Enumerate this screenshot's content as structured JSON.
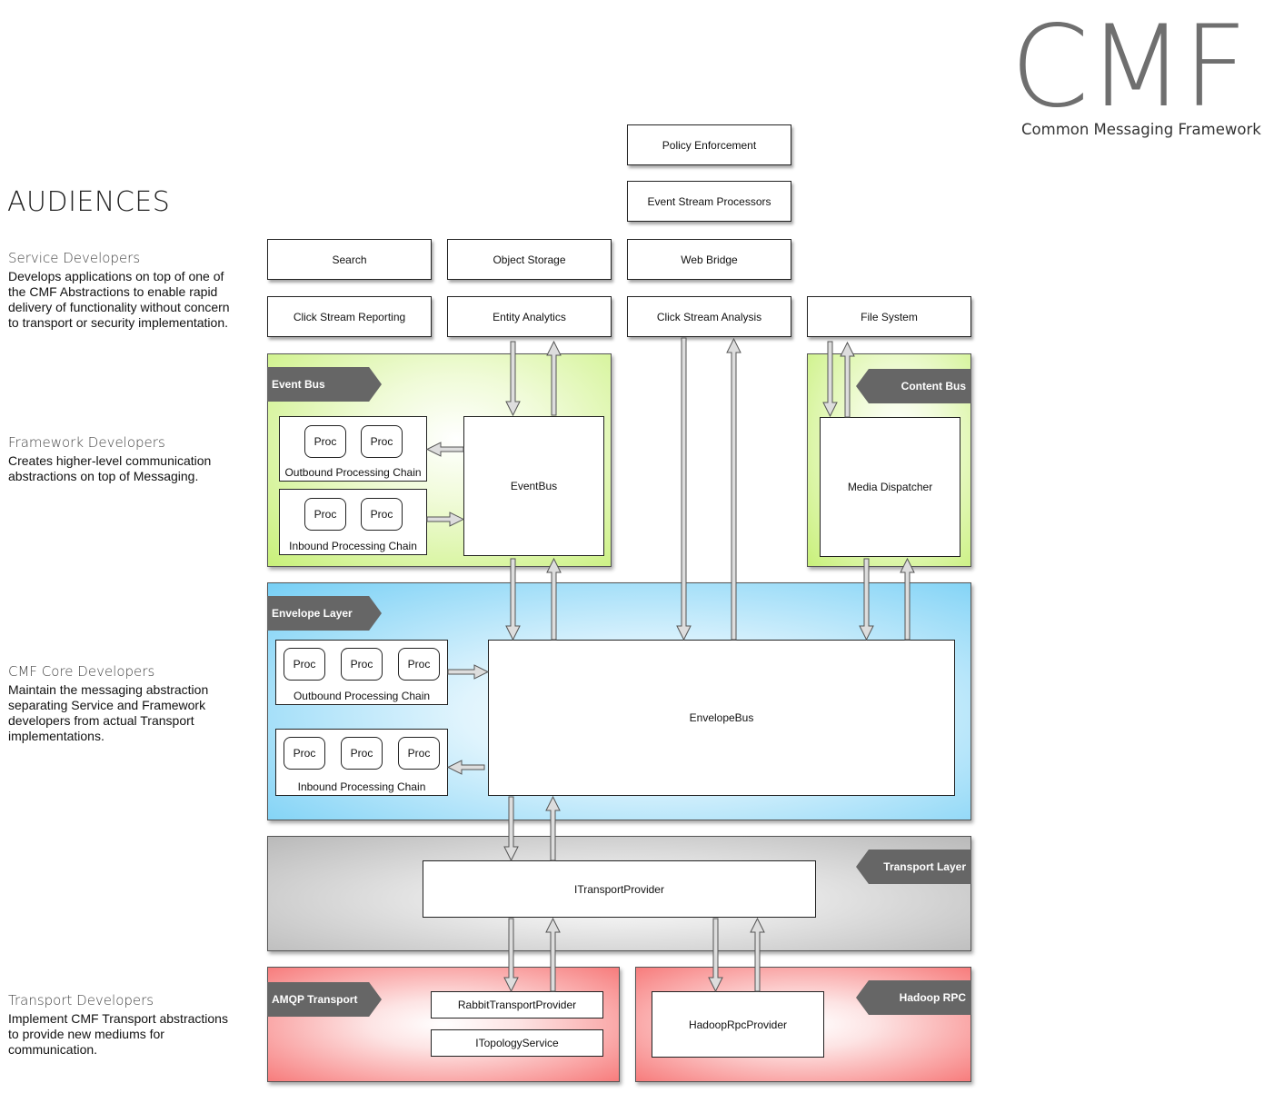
{
  "logo": {
    "title": "CMF",
    "subtitle": "Common Messaging Framework"
  },
  "audiences": {
    "title": "AUDIENCES",
    "items": [
      {
        "name": "Service Developers",
        "description": "Develops applications on top of one of the CMF Abstractions to enable rapid delivery of functionality without concern to transport or security implementation."
      },
      {
        "name": "Framework Developers",
        "description": "Creates higher-level communication abstractions on top of Messaging."
      },
      {
        "name": "CMF Core Developers",
        "description": "Maintain the messaging abstraction separating Service and Framework developers from actual Transport implementations."
      },
      {
        "name": "Transport Developers",
        "description": "Implement CMF Transport abstractions to provide new mediums for communication."
      }
    ]
  },
  "services": {
    "policy_enforcement": "Policy Enforcement",
    "event_stream_processors": "Event Stream Processors",
    "search": "Search",
    "object_storage": "Object Storage",
    "web_bridge": "Web Bridge",
    "click_stream_reporting": "Click Stream Reporting",
    "entity_analytics": "Entity Analytics",
    "click_stream_analysis": "Click Stream Analysis",
    "file_system": "File System"
  },
  "event_bus": {
    "tag": "Event Bus",
    "box": "EventBus",
    "outbound_label": "Outbound Processing Chain",
    "inbound_label": "Inbound Processing Chain",
    "proc": "Proc"
  },
  "content_bus": {
    "tag": "Content Bus",
    "box": "Media Dispatcher"
  },
  "envelope_layer": {
    "tag": "Envelope Layer",
    "box": "EnvelopeBus",
    "outbound_label": "Outbound Processing Chain",
    "inbound_label": "Inbound Processing Chain",
    "proc": "Proc"
  },
  "transport_layer": {
    "tag": "Transport Layer",
    "box": "ITransportProvider"
  },
  "amqp": {
    "tag": "AMQP Transport",
    "provider": "RabbitTransportProvider",
    "topology": "ITopologyService"
  },
  "hadoop": {
    "tag": "Hadoop RPC",
    "provider": "HadoopRpcProvider"
  },
  "colors": {
    "green": "#c8f07a",
    "blue": "#76cff5",
    "gray": "#b9b9b9",
    "red": "#f77c7c",
    "tag": "#666666"
  }
}
